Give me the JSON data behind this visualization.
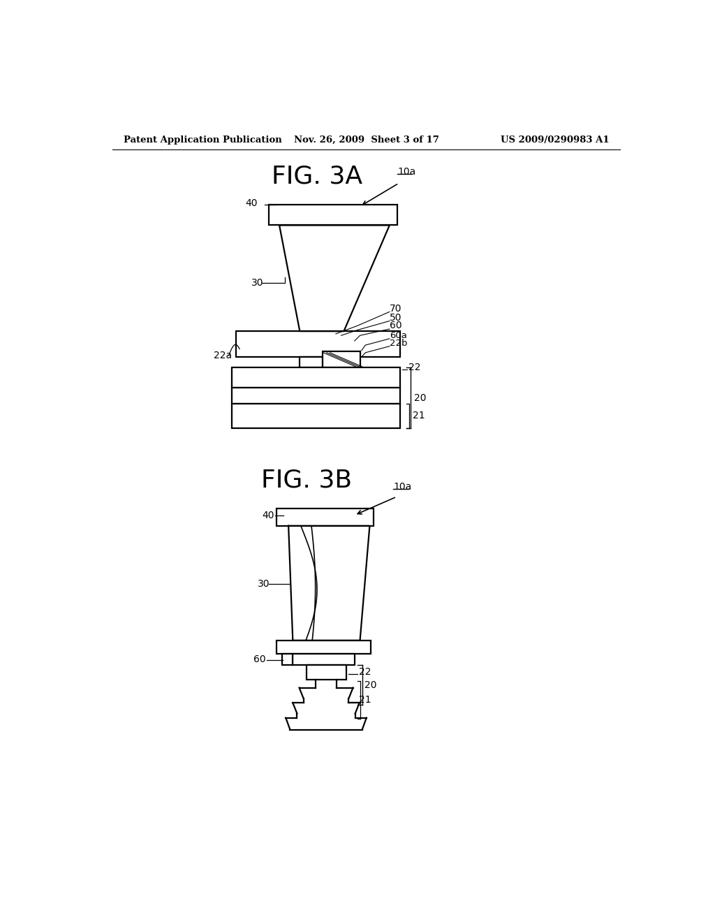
{
  "bg_color": "#ffffff",
  "header_text": "Patent Application Publication",
  "header_date": "Nov. 26, 2009  Sheet 3 of 17",
  "header_patent": "US 2009/0290983 A1",
  "fig3a_title": "FIG. 3A",
  "fig3b_title": "FIG. 3B"
}
